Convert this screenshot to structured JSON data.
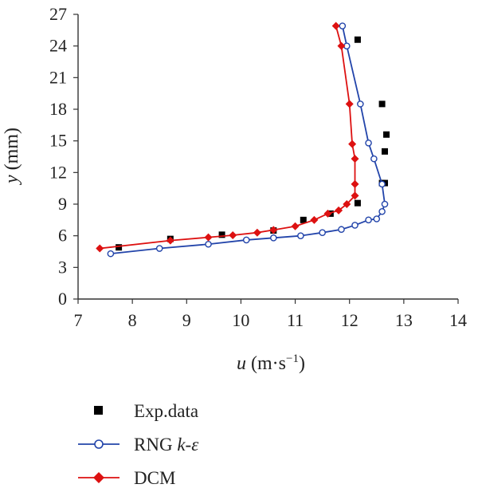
{
  "chart_data": {
    "type": "line",
    "title": "",
    "xlabel": {
      "var": "u",
      "unit": " (m·s",
      "exp": "−1",
      "close": ")"
    },
    "ylabel": {
      "var": "y",
      "unit": " (mm)"
    },
    "xlim": [
      7,
      14
    ],
    "ylim": [
      0,
      27
    ],
    "xticks": [
      7,
      8,
      9,
      10,
      11,
      12,
      13,
      14
    ],
    "yticks": [
      0,
      3,
      6,
      9,
      12,
      15,
      18,
      21,
      24,
      27
    ],
    "grid": false,
    "legend_position": "bottom",
    "series": [
      {
        "name": "Exp.data",
        "style": "scatter",
        "marker": "square",
        "color": "#000000",
        "x": [
          7.75,
          8.7,
          9.65,
          10.6,
          11.15,
          11.65,
          12.15,
          12.6,
          12.65,
          12.68,
          12.6,
          12.65,
          12.15
        ],
        "y": [
          4.9,
          5.7,
          6.1,
          6.5,
          7.5,
          8.1,
          9.1,
          11.0,
          14.0,
          15.6,
          18.5,
          11.0,
          24.6
        ]
      },
      {
        "name_main": "RNG ",
        "name_k": "k",
        "name_dash": "-",
        "name_eps": "ε",
        "style": "line",
        "marker": "circle-open",
        "color": "#2244aa",
        "x": [
          7.6,
          8.5,
          9.4,
          10.1,
          10.6,
          11.1,
          11.5,
          11.85,
          12.1,
          12.35,
          12.5,
          12.6,
          12.65,
          12.6,
          12.45,
          12.35,
          12.2,
          11.95,
          11.87
        ],
        "y": [
          4.3,
          4.8,
          5.2,
          5.6,
          5.8,
          6.0,
          6.3,
          6.6,
          7.0,
          7.5,
          7.6,
          8.3,
          9.0,
          10.9,
          13.3,
          14.8,
          18.5,
          24.0,
          25.9
        ]
      },
      {
        "name": "DCM",
        "style": "line",
        "marker": "diamond",
        "color": "#dd1111",
        "x": [
          7.4,
          8.7,
          9.4,
          9.85,
          10.3,
          10.6,
          11.0,
          11.35,
          11.6,
          11.8,
          11.95,
          12.1,
          12.1,
          12.1,
          12.05,
          12.0,
          11.85,
          11.75
        ],
        "y": [
          4.8,
          5.55,
          5.85,
          6.05,
          6.3,
          6.55,
          6.9,
          7.5,
          8.1,
          8.4,
          9.0,
          9.8,
          10.9,
          13.3,
          14.7,
          18.5,
          24.0,
          25.9
        ]
      }
    ]
  }
}
